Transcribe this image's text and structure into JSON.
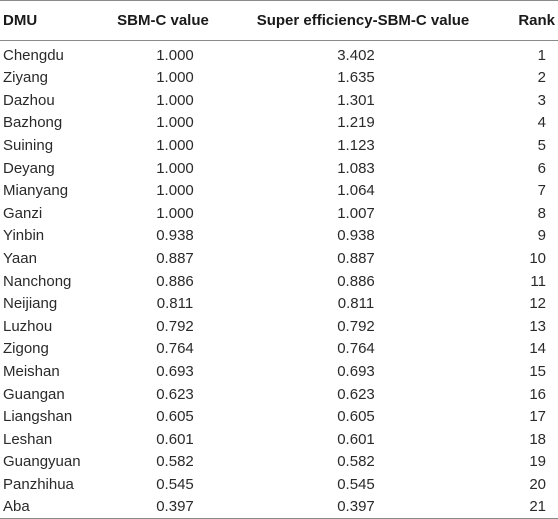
{
  "table": {
    "headers": {
      "dmu": "DMU",
      "sbm": "SBM-C value",
      "super": "Super efficiency-SBM-C value",
      "rank": "Rank"
    },
    "rows": [
      {
        "dmu": "Chengdu",
        "sbm": "1.000",
        "super": "3.402",
        "rank": "1"
      },
      {
        "dmu": "Ziyang",
        "sbm": "1.000",
        "super": "1.635",
        "rank": "2"
      },
      {
        "dmu": "Dazhou",
        "sbm": "1.000",
        "super": "1.301",
        "rank": "3"
      },
      {
        "dmu": "Bazhong",
        "sbm": "1.000",
        "super": "1.219",
        "rank": "4"
      },
      {
        "dmu": "Suining",
        "sbm": "1.000",
        "super": "1.123",
        "rank": "5"
      },
      {
        "dmu": "Deyang",
        "sbm": "1.000",
        "super": "1.083",
        "rank": "6"
      },
      {
        "dmu": "Mianyang",
        "sbm": "1.000",
        "super": "1.064",
        "rank": "7"
      },
      {
        "dmu": "Ganzi",
        "sbm": "1.000",
        "super": "1.007",
        "rank": "8"
      },
      {
        "dmu": "Yinbin",
        "sbm": "0.938",
        "super": "0.938",
        "rank": "9"
      },
      {
        "dmu": "Yaan",
        "sbm": "0.887",
        "super": "0.887",
        "rank": "10"
      },
      {
        "dmu": "Nanchong",
        "sbm": "0.886",
        "super": "0.886",
        "rank": "11"
      },
      {
        "dmu": "Neijiang",
        "sbm": "0.811",
        "super": "0.811",
        "rank": "12"
      },
      {
        "dmu": "Luzhou",
        "sbm": "0.792",
        "super": "0.792",
        "rank": "13"
      },
      {
        "dmu": "Zigong",
        "sbm": "0.764",
        "super": "0.764",
        "rank": "14"
      },
      {
        "dmu": "Meishan",
        "sbm": "0.693",
        "super": "0.693",
        "rank": "15"
      },
      {
        "dmu": "Guangan",
        "sbm": "0.623",
        "super": "0.623",
        "rank": "16"
      },
      {
        "dmu": "Liangshan",
        "sbm": "0.605",
        "super": "0.605",
        "rank": "17"
      },
      {
        "dmu": "Leshan",
        "sbm": "0.601",
        "super": "0.601",
        "rank": "18"
      },
      {
        "dmu": "Guangyuan",
        "sbm": "0.582",
        "super": "0.582",
        "rank": "19"
      },
      {
        "dmu": "Panzhihua",
        "sbm": "0.545",
        "super": "0.545",
        "rank": "20"
      },
      {
        "dmu": "Aba",
        "sbm": "0.397",
        "super": "0.397",
        "rank": "21"
      }
    ]
  }
}
